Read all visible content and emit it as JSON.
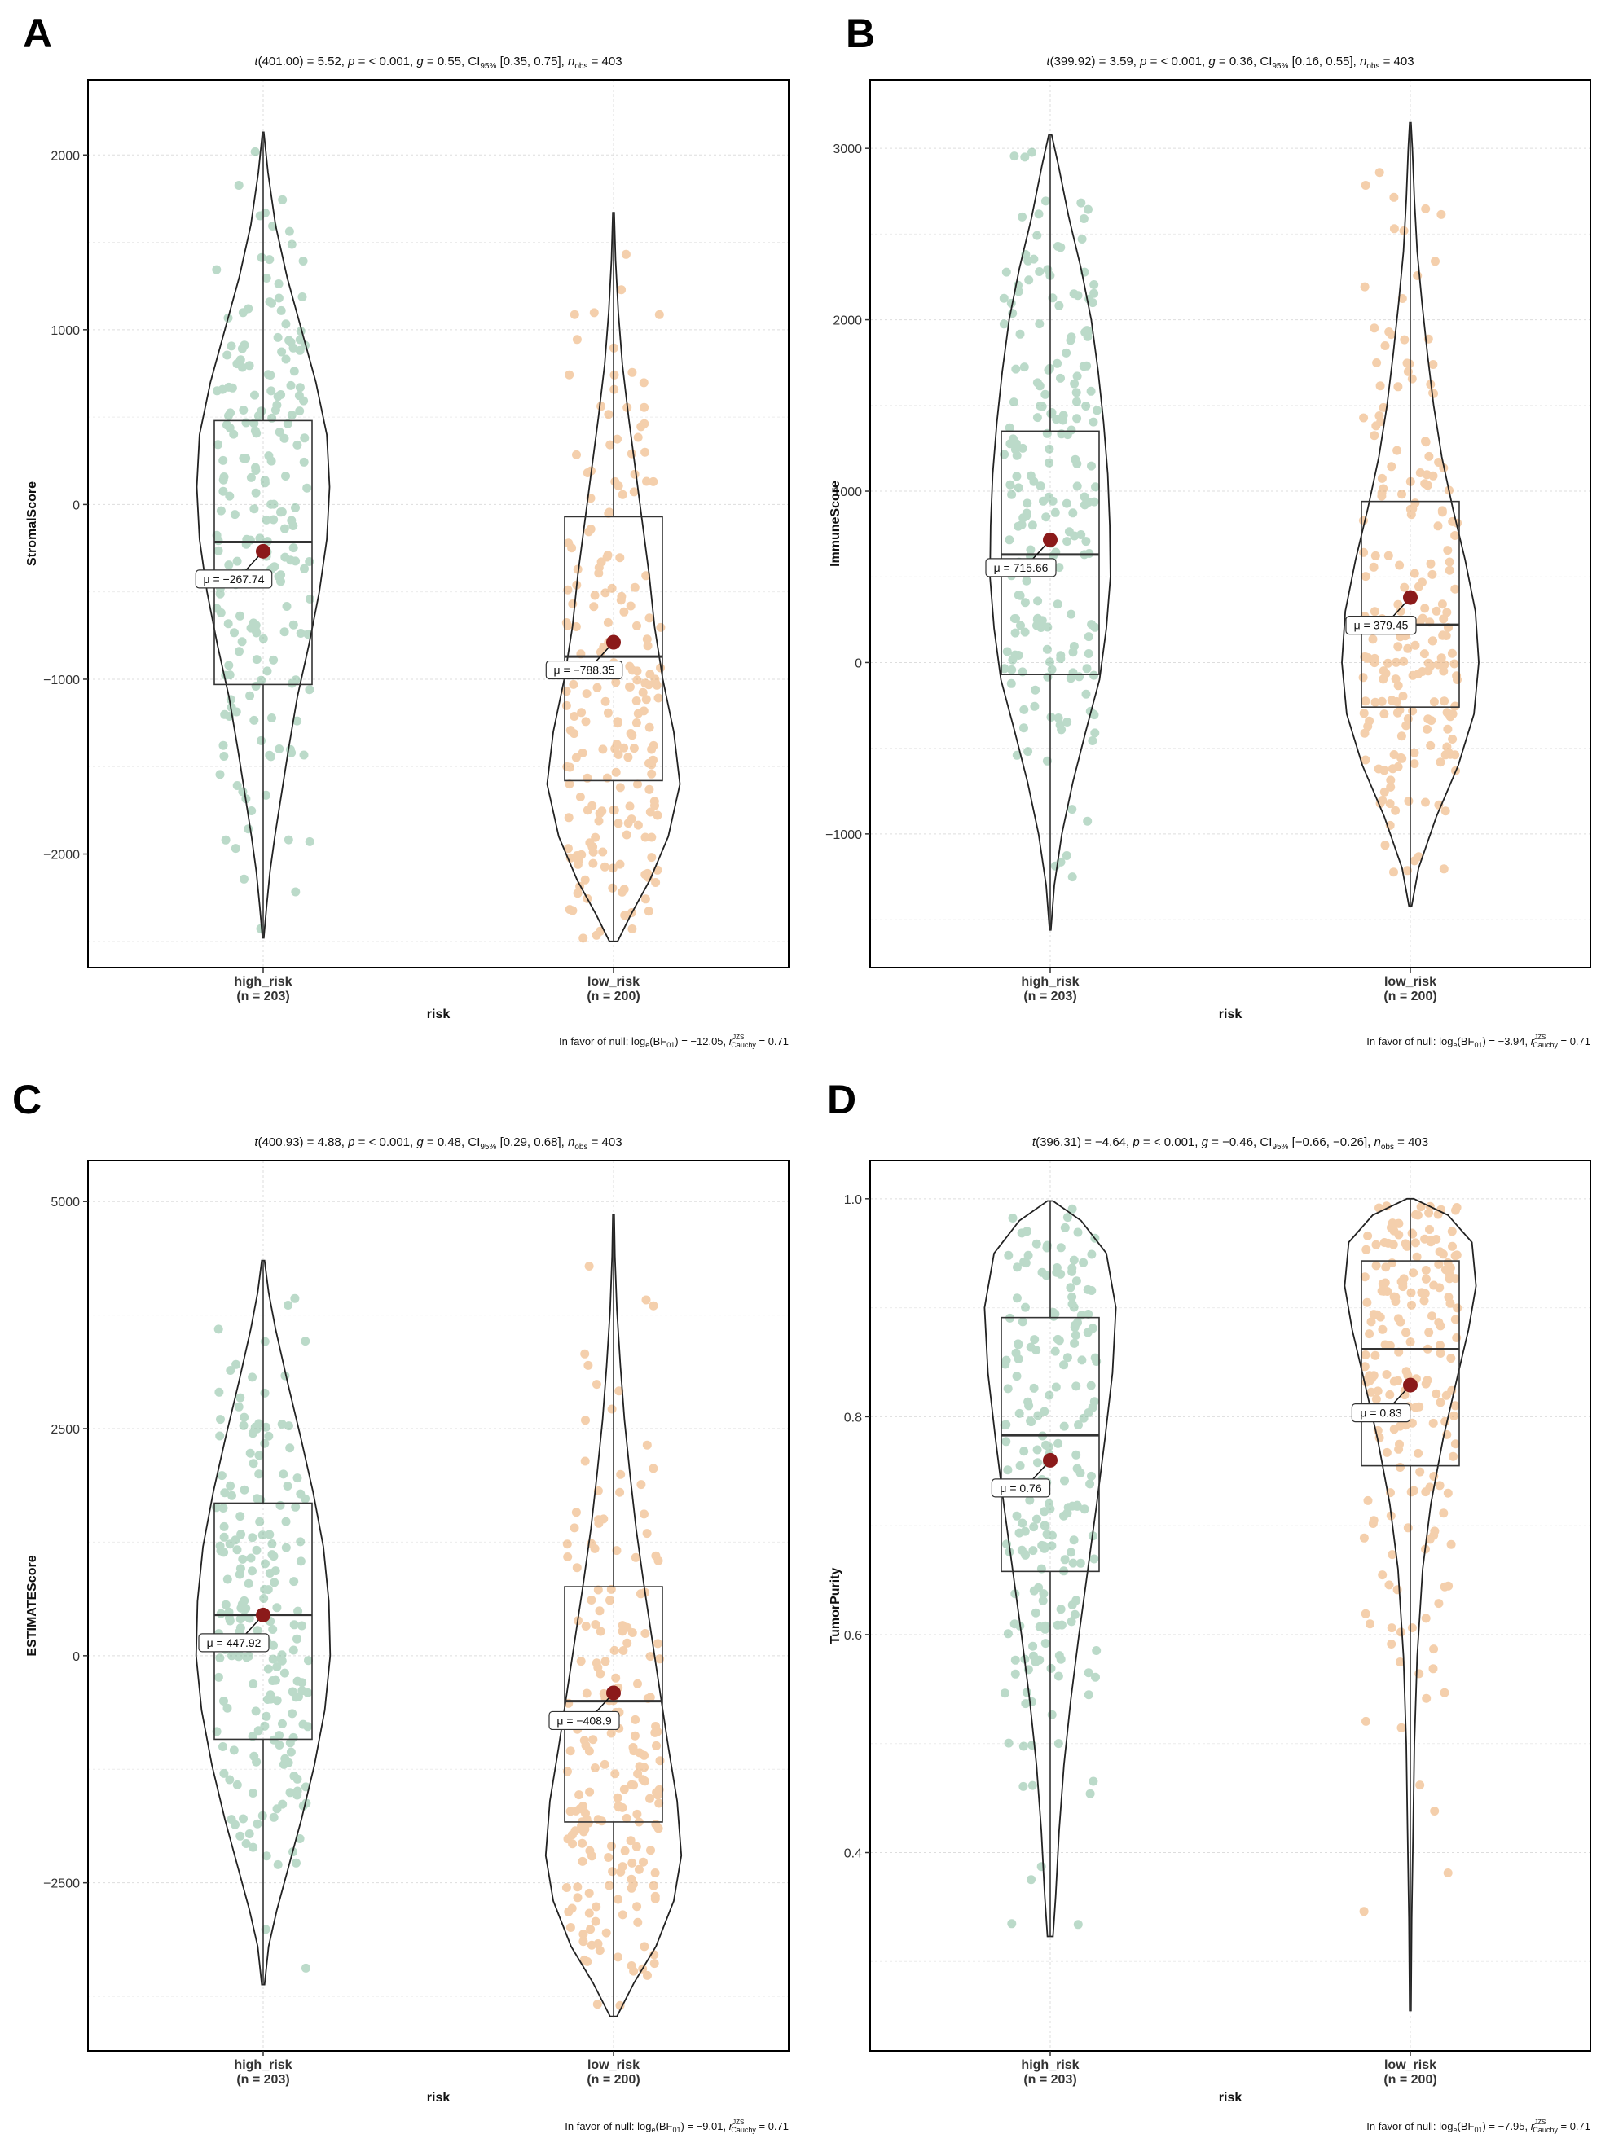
{
  "colors": {
    "high_risk": "#6aaf8a",
    "low_risk": "#e8974a",
    "mean_point": "#8b1a1a"
  },
  "chart_data": [
    {
      "type": "violin-box",
      "panel_label": "A",
      "title": "",
      "subtitle": {
        "t": "401.00",
        "t_value": "5.52",
        "p": "< 0.001",
        "g": "0.55",
        "ci": "[0.35, 0.75]",
        "n_obs": "403"
      },
      "ylabel": "StromalScore",
      "xlabel": "risk",
      "ylim": [
        -2650,
        2430
      ],
      "yticks": [
        -2000,
        -1000,
        0,
        1000,
        2000
      ],
      "yticks_text": [
        "−2000",
        "−1000",
        "0",
        "1000",
        "2000"
      ],
      "caption": {
        "bf": "−12.05",
        "r": "0.71"
      },
      "groups": [
        {
          "name": "high_risk",
          "n": "(n = 203)",
          "mean": -267.74,
          "mean_label": "μ = −267.74",
          "median": -215,
          "q1": -1030,
          "q3": 480,
          "min": -2480,
          "max": 2130,
          "density": [
            [
              -2480,
              0.01
            ],
            [
              -2300,
              0.05
            ],
            [
              -2100,
              0.1
            ],
            [
              -1900,
              0.17
            ],
            [
              -1700,
              0.25
            ],
            [
              -1400,
              0.37
            ],
            [
              -1100,
              0.5
            ],
            [
              -800,
              0.67
            ],
            [
              -500,
              0.82
            ],
            [
              -200,
              0.93
            ],
            [
              100,
              0.97
            ],
            [
              400,
              0.93
            ],
            [
              700,
              0.77
            ],
            [
              1000,
              0.56
            ],
            [
              1300,
              0.35
            ],
            [
              1600,
              0.18
            ],
            [
              1900,
              0.07
            ],
            [
              2130,
              0.01
            ]
          ]
        },
        {
          "name": "low_risk",
          "n": "(n = 200)",
          "mean": -788.35,
          "mean_label": "μ = −788.35",
          "median": -870,
          "q1": -1580,
          "q3": -70,
          "min": -2500,
          "max": 1670,
          "density": [
            [
              -2500,
              0.06
            ],
            [
              -2350,
              0.25
            ],
            [
              -2150,
              0.53
            ],
            [
              -1900,
              0.8
            ],
            [
              -1600,
              0.97
            ],
            [
              -1300,
              0.88
            ],
            [
              -1000,
              0.72
            ],
            [
              -700,
              0.6
            ],
            [
              -400,
              0.52
            ],
            [
              -100,
              0.42
            ],
            [
              200,
              0.32
            ],
            [
              500,
              0.22
            ],
            [
              800,
              0.13
            ],
            [
              1100,
              0.07
            ],
            [
              1400,
              0.03
            ],
            [
              1670,
              0.01
            ]
          ]
        }
      ]
    },
    {
      "type": "violin-box",
      "panel_label": "B",
      "title": "",
      "subtitle": {
        "t": "399.92",
        "t_value": "3.59",
        "p": "< 0.001",
        "g": "0.36",
        "ci": "[0.16, 0.55]",
        "n_obs": "403"
      },
      "ylabel": "ImmuneScore",
      "xlabel": "risk",
      "ylim": [
        -1780,
        3400
      ],
      "yticks": [
        -1000,
        0,
        1000,
        2000,
        3000
      ],
      "yticks_text": [
        "−1000",
        "0",
        "1000",
        "2000",
        "3000"
      ],
      "caption": {
        "bf": "−3.94",
        "r": "0.71"
      },
      "groups": [
        {
          "name": "high_risk",
          "n": "(n = 203)",
          "mean": 715.66,
          "mean_label": "μ = 715.66",
          "median": 630,
          "q1": -70,
          "q3": 1350,
          "min": -1560,
          "max": 3080,
          "density": [
            [
              -1560,
              0.01
            ],
            [
              -1300,
              0.06
            ],
            [
              -1000,
              0.17
            ],
            [
              -700,
              0.33
            ],
            [
              -400,
              0.52
            ],
            [
              -100,
              0.72
            ],
            [
              200,
              0.82
            ],
            [
              500,
              0.88
            ],
            [
              800,
              0.87
            ],
            [
              1100,
              0.84
            ],
            [
              1400,
              0.78
            ],
            [
              1700,
              0.7
            ],
            [
              2000,
              0.6
            ],
            [
              2300,
              0.45
            ],
            [
              2600,
              0.27
            ],
            [
              2900,
              0.12
            ],
            [
              3080,
              0.02
            ]
          ]
        },
        {
          "name": "low_risk",
          "n": "(n = 200)",
          "mean": 379.45,
          "mean_label": "μ = 379.45",
          "median": 220,
          "q1": -260,
          "q3": 940,
          "min": -1420,
          "max": 3150,
          "density": [
            [
              -1420,
              0.02
            ],
            [
              -1200,
              0.12
            ],
            [
              -900,
              0.38
            ],
            [
              -600,
              0.7
            ],
            [
              -300,
              0.93
            ],
            [
              0,
              1.0
            ],
            [
              300,
              0.95
            ],
            [
              600,
              0.8
            ],
            [
              900,
              0.62
            ],
            [
              1200,
              0.46
            ],
            [
              1500,
              0.34
            ],
            [
              1800,
              0.25
            ],
            [
              2100,
              0.17
            ],
            [
              2400,
              0.1
            ],
            [
              2700,
              0.06
            ],
            [
              3000,
              0.03
            ],
            [
              3150,
              0.01
            ]
          ]
        }
      ]
    },
    {
      "type": "violin-box",
      "panel_label": "C",
      "title": "",
      "subtitle": {
        "t": "400.93",
        "t_value": "4.88",
        "p": "< 0.001",
        "g": "0.48",
        "ci": "[0.29, 0.68]",
        "n_obs": "403"
      },
      "ylabel": "ESTIMATEScore",
      "xlabel": "risk",
      "ylim": [
        -4350,
        5450
      ],
      "yticks": [
        -2500,
        0,
        2500,
        5000
      ],
      "yticks_text": [
        "−2500",
        "0",
        "2500",
        "5000"
      ],
      "caption": {
        "bf": "−9.01",
        "r": "0.71"
      },
      "groups": [
        {
          "name": "high_risk",
          "n": "(n = 203)",
          "mean": 447.92,
          "mean_label": "μ = 447.92",
          "median": 450,
          "q1": -920,
          "q3": 1680,
          "min": -3620,
          "max": 4350,
          "density": [
            [
              -3620,
              0.02
            ],
            [
              -3200,
              0.08
            ],
            [
              -2800,
              0.2
            ],
            [
              -2300,
              0.38
            ],
            [
              -1800,
              0.56
            ],
            [
              -1200,
              0.75
            ],
            [
              -600,
              0.9
            ],
            [
              0,
              0.98
            ],
            [
              600,
              0.96
            ],
            [
              1200,
              0.88
            ],
            [
              1800,
              0.73
            ],
            [
              2400,
              0.55
            ],
            [
              3000,
              0.36
            ],
            [
              3600,
              0.18
            ],
            [
              4000,
              0.08
            ],
            [
              4350,
              0.02
            ]
          ]
        },
        {
          "name": "low_risk",
          "n": "(n = 200)",
          "mean": -408.9,
          "mean_label": "μ = −408.9",
          "median": -500,
          "q1": -1830,
          "q3": 760,
          "min": -3970,
          "max": 4850,
          "density": [
            [
              -3970,
              0.05
            ],
            [
              -3600,
              0.3
            ],
            [
              -3200,
              0.62
            ],
            [
              -2700,
              0.88
            ],
            [
              -2200,
              0.99
            ],
            [
              -1600,
              0.93
            ],
            [
              -1000,
              0.8
            ],
            [
              -400,
              0.68
            ],
            [
              200,
              0.56
            ],
            [
              800,
              0.44
            ],
            [
              1400,
              0.33
            ],
            [
              2000,
              0.24
            ],
            [
              2600,
              0.16
            ],
            [
              3200,
              0.1
            ],
            [
              3800,
              0.05
            ],
            [
              4400,
              0.02
            ],
            [
              4850,
              0.01
            ]
          ]
        }
      ]
    },
    {
      "type": "violin-box",
      "panel_label": "D",
      "title": "",
      "subtitle": {
        "t": "396.31",
        "t_value": "−4.64",
        "p": "< 0.001",
        "g": "−0.46",
        "ci": "[−0.66, −0.26]",
        "n_obs": "403"
      },
      "ylabel": "TumorPurity",
      "xlabel": "risk",
      "ylim": [
        0.218,
        1.035
      ],
      "yticks": [
        0.4,
        0.6,
        0.8,
        1.0
      ],
      "yticks_text": [
        "0.4",
        "0.6",
        "0.8",
        "1.0"
      ],
      "caption": {
        "bf": "−7.95",
        "r": "0.71"
      },
      "groups": [
        {
          "name": "high_risk",
          "n": "(n = 203)",
          "mean": 0.76,
          "mean_label": "μ = 0.76",
          "median": 0.783,
          "q1": 0.658,
          "q3": 0.891,
          "min": 0.323,
          "max": 0.998,
          "density": [
            [
              0.323,
              0.04
            ],
            [
              0.36,
              0.08
            ],
            [
              0.42,
              0.13
            ],
            [
              0.48,
              0.2
            ],
            [
              0.54,
              0.3
            ],
            [
              0.6,
              0.42
            ],
            [
              0.66,
              0.55
            ],
            [
              0.72,
              0.68
            ],
            [
              0.78,
              0.8
            ],
            [
              0.84,
              0.91
            ],
            [
              0.9,
              0.96
            ],
            [
              0.95,
              0.82
            ],
            [
              0.98,
              0.45
            ],
            [
              0.998,
              0.04
            ]
          ]
        },
        {
          "name": "low_risk",
          "n": "(n = 200)",
          "mean": 0.829,
          "mean_label": "μ = 0.83",
          "median": 0.862,
          "q1": 0.755,
          "q3": 0.943,
          "min": 0.255,
          "max": 1.0,
          "density": [
            [
              0.255,
              0.01
            ],
            [
              0.34,
              0.02
            ],
            [
              0.42,
              0.04
            ],
            [
              0.5,
              0.06
            ],
            [
              0.58,
              0.1
            ],
            [
              0.66,
              0.18
            ],
            [
              0.72,
              0.3
            ],
            [
              0.78,
              0.48
            ],
            [
              0.84,
              0.7
            ],
            [
              0.88,
              0.85
            ],
            [
              0.92,
              0.96
            ],
            [
              0.96,
              0.9
            ],
            [
              0.985,
              0.55
            ],
            [
              1.0,
              0.05
            ]
          ]
        }
      ]
    }
  ]
}
